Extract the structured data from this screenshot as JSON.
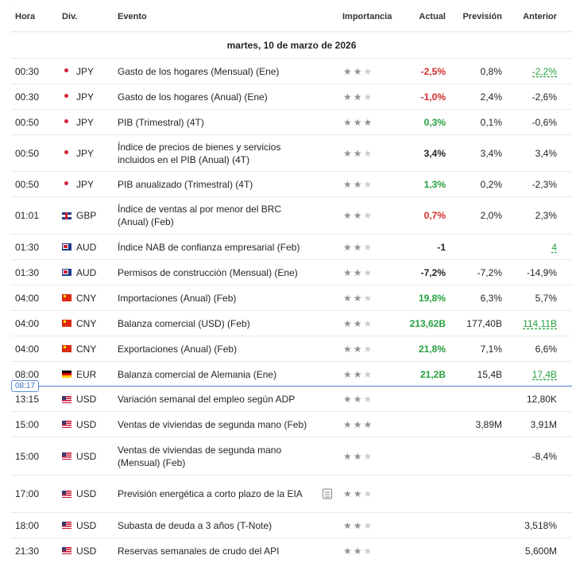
{
  "columns": {
    "time": "Hora",
    "currency": "Div.",
    "event": "Evento",
    "importance": "Importancia",
    "actual": "Actual",
    "forecast": "Previsión",
    "previous": "Anterior"
  },
  "date_label": "martes, 10 de marzo de 2026",
  "now_marker": "08:17",
  "rows": [
    {
      "time": "00:30",
      "flag": "jp",
      "currency": "JPY",
      "event": "Gasto de los hogares (Mensual) (Ene)",
      "stars": 2,
      "actual": "-2,5%",
      "actual_color": "red",
      "forecast": "0,8%",
      "previous": "-2,2%",
      "previous_style": "ul-green"
    },
    {
      "time": "00:30",
      "flag": "jp",
      "currency": "JPY",
      "event": "Gasto de los hogares (Anual) (Ene)",
      "stars": 2,
      "actual": "-1,0%",
      "actual_color": "red",
      "forecast": "2,4%",
      "previous": "-2,6%",
      "previous_style": "plain"
    },
    {
      "time": "00:50",
      "flag": "jp",
      "currency": "JPY",
      "event": "PIB (Trimestral) (4T)",
      "stars": 3,
      "actual": "0,3%",
      "actual_color": "green",
      "forecast": "0,1%",
      "previous": "-0,6%",
      "previous_style": "plain"
    },
    {
      "time": "00:50",
      "flag": "jp",
      "currency": "JPY",
      "event": "Índice de precios de bienes y servicios incluidos en el PIB (Anual) (4T)",
      "stars": 2,
      "actual": "3,4%",
      "actual_color": "dark",
      "forecast": "3,4%",
      "previous": "3,4%",
      "previous_style": "plain"
    },
    {
      "time": "00:50",
      "flag": "jp",
      "currency": "JPY",
      "event": "PIB anualizado (Trimestral) (4T)",
      "stars": 2,
      "actual": "1,3%",
      "actual_color": "green",
      "forecast": "0,2%",
      "previous": "-2,3%",
      "previous_style": "plain"
    },
    {
      "time": "01:01",
      "flag": "gb",
      "currency": "GBP",
      "event": "Índice de ventas al por menor del BRC (Anual) (Feb)",
      "stars": 2,
      "actual": "0,7%",
      "actual_color": "red",
      "forecast": "2,0%",
      "previous": "2,3%",
      "previous_style": "plain"
    },
    {
      "time": "01:30",
      "flag": "au",
      "currency": "AUD",
      "event": "Índice NAB de confianza empresarial (Feb)",
      "stars": 2,
      "actual": "-1",
      "actual_color": "dark",
      "forecast": "",
      "previous": "4",
      "previous_style": "ul-green"
    },
    {
      "time": "01:30",
      "flag": "au",
      "currency": "AUD",
      "event": "Permisos de construcción (Mensual) (Ene)",
      "stars": 2,
      "actual": "-7,2%",
      "actual_color": "dark",
      "forecast": "-7,2%",
      "previous": "-14,9%",
      "previous_style": "plain"
    },
    {
      "time": "04:00",
      "flag": "cn",
      "currency": "CNY",
      "event": "Importaciones (Anual) (Feb)",
      "stars": 2,
      "actual": "19,8%",
      "actual_color": "green",
      "forecast": "6,3%",
      "previous": "5,7%",
      "previous_style": "plain"
    },
    {
      "time": "04:00",
      "flag": "cn",
      "currency": "CNY",
      "event": "Balanza comercial (USD) (Feb)",
      "stars": 2,
      "actual": "213,62B",
      "actual_color": "green",
      "forecast": "177,40B",
      "previous": "114,11B",
      "previous_style": "ul-green"
    },
    {
      "time": "04:00",
      "flag": "cn",
      "currency": "CNY",
      "event": "Exportaciones (Anual) (Feb)",
      "stars": 2,
      "actual": "21,8%",
      "actual_color": "green",
      "forecast": "7,1%",
      "previous": "6,6%",
      "previous_style": "plain"
    },
    {
      "time": "08:00",
      "flag": "de",
      "currency": "EUR",
      "event": "Balanza comercial de Alemania (Ene)",
      "stars": 2,
      "actual": "21,2B",
      "actual_color": "green",
      "forecast": "15,4B",
      "previous": "17,4B",
      "previous_style": "ul-green"
    },
    {
      "time": "13:15",
      "flag": "us",
      "currency": "USD",
      "event": "Variación semanal del empleo según ADP",
      "stars": 2,
      "actual": "",
      "actual_color": "dark",
      "forecast": "",
      "previous": "12,80K",
      "previous_style": "plain"
    },
    {
      "time": "15:00",
      "flag": "us",
      "currency": "USD",
      "event": "Ventas de viviendas de segunda mano (Feb)",
      "stars": 3,
      "actual": "",
      "actual_color": "dark",
      "forecast": "3,89M",
      "previous": "3,91M",
      "previous_style": "plain"
    },
    {
      "time": "15:00",
      "flag": "us",
      "currency": "USD",
      "event": "Ventas de viviendas de segunda mano (Mensual) (Feb)",
      "stars": 2,
      "actual": "",
      "actual_color": "dark",
      "forecast": "",
      "previous": "-8,4%",
      "previous_style": "plain"
    },
    {
      "time": "17:00",
      "flag": "us",
      "currency": "USD",
      "event": "Previsión energética a corto plazo de la EIA",
      "stars": 2,
      "actual": "",
      "actual_color": "dark",
      "forecast": "",
      "previous": "",
      "previous_style": "plain",
      "doc_icon": "document-icon"
    },
    {
      "time": "18:00",
      "flag": "us",
      "currency": "USD",
      "event": "Subasta de deuda a 3 años (T-Note)",
      "stars": 2,
      "actual": "",
      "actual_color": "dark",
      "forecast": "",
      "previous": "3,518%",
      "previous_style": "plain"
    },
    {
      "time": "21:30",
      "flag": "us",
      "currency": "USD",
      "event": "Reservas semanales de crudo del API",
      "stars": 2,
      "actual": "",
      "actual_color": "dark",
      "forecast": "",
      "previous": "5,600M",
      "previous_style": "plain"
    }
  ]
}
